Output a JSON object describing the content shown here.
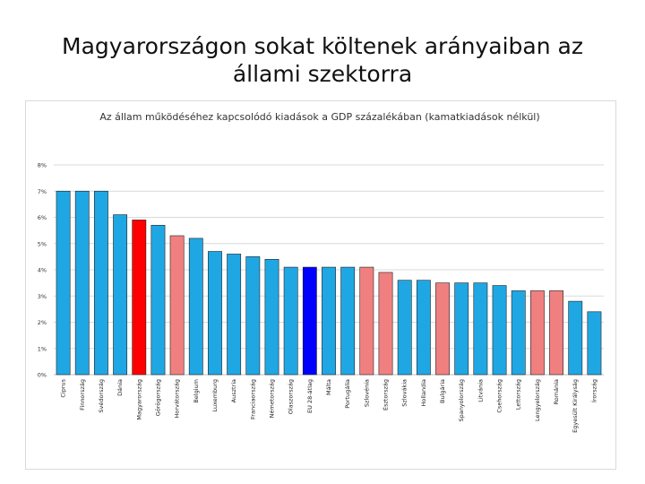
{
  "slide": {
    "title": "Magyarországon sokat költenek arányaiban az állami szektorra"
  },
  "colors": {
    "default_bar": "#1fa7e3",
    "highlight_bar": "#ff0000",
    "eu_bar": "#0000ff",
    "neighbor_bar": "#f08080",
    "bar_stroke": "#222222",
    "grid": "#d9d9d9"
  },
  "chart_data": {
    "type": "bar",
    "title": "Az állam működéséhez kapcsolódó kiadások a GDP százalékában (kamatkiadások nélkül)",
    "xlabel": "",
    "ylabel": "",
    "ylim": [
      0,
      8
    ],
    "yticks": [
      0,
      1,
      2,
      3,
      4,
      5,
      6,
      7,
      8
    ],
    "ytick_labels": [
      "0%",
      "1%",
      "2%",
      "3%",
      "4%",
      "5%",
      "6%",
      "7%",
      "8%"
    ],
    "grid": true,
    "legend": "none",
    "categories": [
      "Ciprus",
      "Finnország",
      "Svédország",
      "Dánia",
      "Magyarország",
      "Görögország",
      "Horvátország",
      "Belgium",
      "Luxemburg",
      "Ausztria",
      "Franciaország",
      "Németország",
      "Olaszország",
      "EU 28-átlag",
      "Málta",
      "Portugália",
      "Szlovénia",
      "Észtország",
      "Szlovákia",
      "Hollandia",
      "Bulgária",
      "Spanyolország",
      "Litvánia",
      "Csehország",
      "Lettország",
      "Lengyelország",
      "Románia",
      "Egyesült Királyság",
      "Írország"
    ],
    "values": [
      7.0,
      7.0,
      7.0,
      6.1,
      5.9,
      5.7,
      5.3,
      5.2,
      4.7,
      4.6,
      4.5,
      4.4,
      4.1,
      4.1,
      4.1,
      4.1,
      4.1,
      3.9,
      3.6,
      3.6,
      3.5,
      3.5,
      3.5,
      3.4,
      3.2,
      3.2,
      3.2,
      2.8,
      2.4
    ],
    "bar_colors": [
      "default",
      "default",
      "default",
      "default",
      "highlight",
      "default",
      "neighbor",
      "default",
      "default",
      "default",
      "default",
      "default",
      "default",
      "eu",
      "default",
      "default",
      "neighbor",
      "neighbor",
      "default",
      "default",
      "neighbor",
      "default",
      "default",
      "default",
      "default",
      "neighbor",
      "neighbor",
      "default",
      "default"
    ]
  }
}
